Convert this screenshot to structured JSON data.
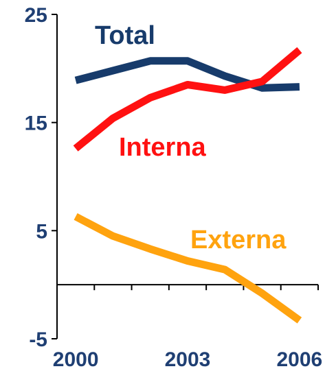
{
  "chart_data": {
    "type": "line",
    "title": "",
    "xlabel": "",
    "ylabel": "",
    "x": [
      2000,
      2001,
      2002,
      2003,
      2004,
      2005,
      2006
    ],
    "x_tick_labels": [
      "2000",
      "2003",
      "2006"
    ],
    "y_tick_labels": [
      "25",
      "15",
      "5",
      "-5"
    ],
    "ylim": [
      -5,
      25
    ],
    "xlim": [
      1999.5,
      2006.5
    ],
    "grid": false,
    "legend": "inline labels next to lines",
    "series": [
      {
        "name": "Total",
        "color": "#173b6b",
        "values": [
          18.9,
          19.8,
          20.7,
          20.7,
          19.3,
          18.2,
          18.3
        ]
      },
      {
        "name": "Interna",
        "color": "#ff1111",
        "values": [
          12.6,
          15.4,
          17.3,
          18.5,
          18.0,
          18.8,
          21.7
        ]
      },
      {
        "name": "Externa",
        "color": "#ffa30f",
        "values": [
          6.3,
          4.5,
          3.3,
          2.2,
          1.4,
          -0.8,
          -3.3
        ]
      }
    ]
  }
}
